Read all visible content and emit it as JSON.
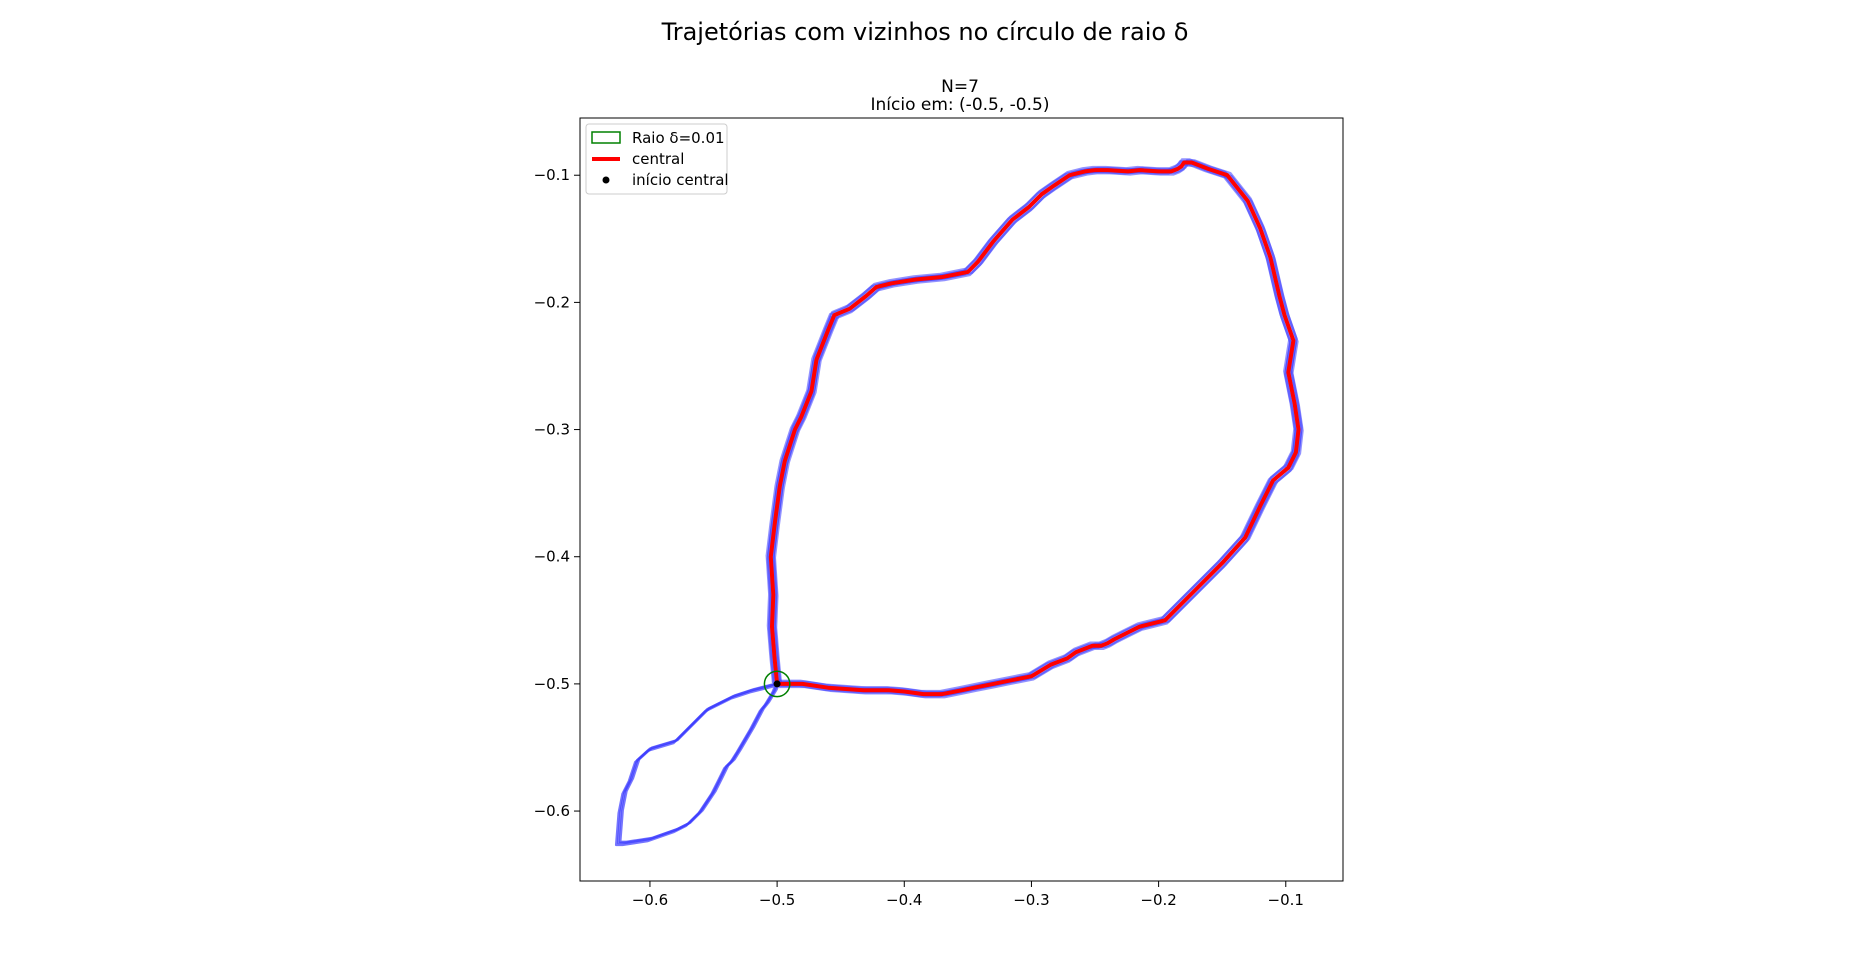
{
  "figure": {
    "suptitle": "Trajetórias com vizinhos no círculo de raio δ"
  },
  "chart_data": {
    "type": "line",
    "title_line1": "N=7",
    "title_line2": "Início em: (-0.5, -0.5)",
    "xlabel": "",
    "ylabel": "",
    "xlim": [
      -0.655,
      -0.055
    ],
    "ylim": [
      -0.655,
      -0.055
    ],
    "xticks": [
      -0.6,
      -0.5,
      -0.4,
      -0.3,
      -0.2,
      -0.1
    ],
    "yticks": [
      -0.1,
      -0.2,
      -0.3,
      -0.4,
      -0.5,
      -0.6
    ],
    "xtick_labels": [
      "−0.6",
      "−0.5",
      "−0.4",
      "−0.3",
      "−0.2",
      "−0.1"
    ],
    "ytick_labels": [
      "−0.1",
      "−0.2",
      "−0.3",
      "−0.4",
      "−0.5",
      "−0.6"
    ],
    "grid": false,
    "legend_position": "upper-left",
    "legend": [
      "Raio δ=0.01",
      "central",
      "início central"
    ],
    "colors": {
      "central": "#ff0000",
      "neighbors": "#3b3bff",
      "circle": "#008000",
      "start": "#000000"
    },
    "start_point": {
      "x": -0.5,
      "y": -0.5
    },
    "circle": {
      "center": [
        -0.5,
        -0.5
      ],
      "radius": 0.01
    },
    "series": [
      {
        "name": "central",
        "x": [
          -0.5,
          -0.502,
          -0.504,
          -0.503,
          -0.505,
          -0.502,
          -0.498,
          -0.494,
          -0.486,
          -0.481,
          -0.473,
          -0.469,
          -0.46,
          -0.455,
          -0.443,
          -0.43,
          -0.422,
          -0.41,
          -0.391,
          -0.37,
          -0.35,
          -0.342,
          -0.33,
          -0.315,
          -0.302,
          -0.292,
          -0.282,
          -0.27,
          -0.258,
          -0.25,
          -0.24,
          -0.224,
          -0.215,
          -0.2,
          -0.19,
          -0.185,
          -0.182,
          -0.18,
          -0.174,
          -0.161,
          -0.146,
          -0.13,
          -0.12,
          -0.112,
          -0.105,
          -0.101,
          -0.094,
          -0.098,
          -0.093,
          -0.09,
          -0.092,
          -0.098,
          -0.11,
          -0.12,
          -0.132,
          -0.15,
          -0.17,
          -0.195,
          -0.215,
          -0.225,
          -0.235,
          -0.24,
          -0.245,
          -0.252,
          -0.265,
          -0.272,
          -0.285,
          -0.3,
          -0.32,
          -0.33,
          -0.345,
          -0.355,
          -0.37,
          -0.385,
          -0.4,
          -0.412,
          -0.432,
          -0.46,
          -0.48,
          -0.5
        ],
        "y": [
          -0.5,
          -0.48,
          -0.455,
          -0.43,
          -0.4,
          -0.375,
          -0.345,
          -0.325,
          -0.3,
          -0.29,
          -0.27,
          -0.245,
          -0.222,
          -0.21,
          -0.205,
          -0.195,
          -0.188,
          -0.185,
          -0.182,
          -0.18,
          -0.176,
          -0.168,
          -0.152,
          -0.135,
          -0.125,
          -0.115,
          -0.108,
          -0.1,
          -0.097,
          -0.096,
          -0.096,
          -0.097,
          -0.096,
          -0.097,
          -0.097,
          -0.095,
          -0.093,
          -0.09,
          -0.09,
          -0.095,
          -0.1,
          -0.12,
          -0.142,
          -0.165,
          -0.195,
          -0.21,
          -0.23,
          -0.255,
          -0.28,
          -0.3,
          -0.318,
          -0.33,
          -0.34,
          -0.36,
          -0.385,
          -0.405,
          -0.425,
          -0.45,
          -0.455,
          -0.46,
          -0.465,
          -0.468,
          -0.47,
          -0.47,
          -0.475,
          -0.48,
          -0.485,
          -0.494,
          -0.498,
          -0.5,
          -0.503,
          -0.505,
          -0.508,
          -0.508,
          -0.506,
          -0.505,
          -0.505,
          -0.503,
          -0.5,
          -0.5
        ]
      },
      {
        "name": "",
        "x": [
          -0.5,
          -0.52,
          -0.535,
          -0.555,
          -0.57,
          -0.58,
          -0.6,
          -0.61,
          -0.615,
          -0.62,
          -0.623,
          -0.625,
          -0.62,
          -0.6,
          -0.58,
          -0.57,
          -0.56,
          -0.55,
          -0.545,
          -0.54,
          -0.535,
          -0.53,
          -0.52,
          -0.512,
          -0.508,
          -0.505,
          -0.502,
          -0.5
        ],
        "y": [
          -0.5,
          -0.505,
          -0.51,
          -0.52,
          -0.535,
          -0.545,
          -0.551,
          -0.56,
          -0.575,
          -0.585,
          -0.6,
          -0.625,
          -0.625,
          -0.622,
          -0.615,
          -0.61,
          -0.6,
          -0.585,
          -0.575,
          -0.565,
          -0.56,
          -0.552,
          -0.535,
          -0.52,
          -0.515,
          -0.51,
          -0.505,
          -0.5
        ]
      }
    ]
  }
}
